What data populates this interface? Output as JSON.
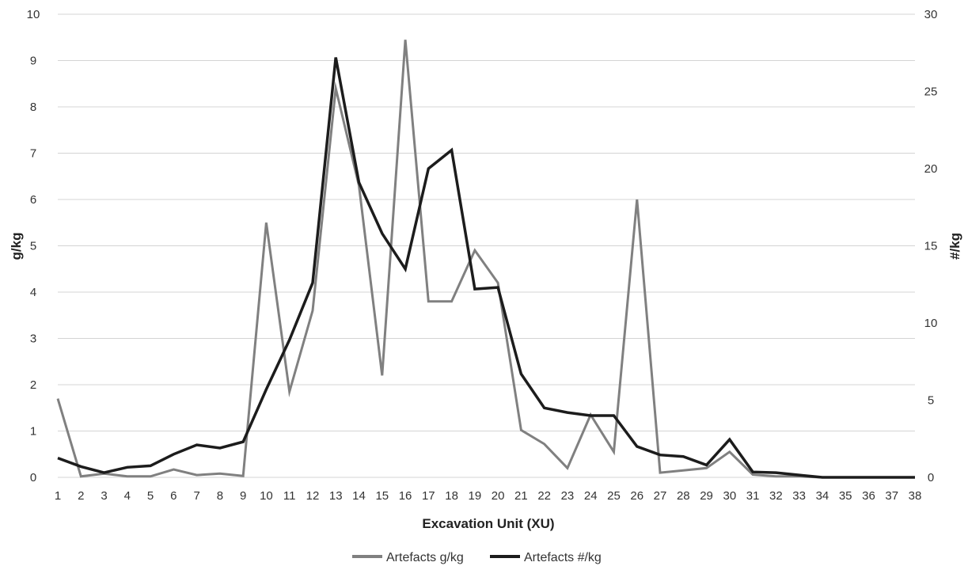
{
  "chart_data": {
    "type": "line",
    "title": "",
    "xlabel": "Excavation Unit (XU)",
    "ylabel": "g/kg",
    "y2label": "#/kg",
    "ylim": [
      0,
      10
    ],
    "y2lim": [
      0,
      30
    ],
    "yticks": [
      0,
      1,
      2,
      3,
      4,
      5,
      6,
      7,
      8,
      9,
      10
    ],
    "y2ticks": [
      0,
      5,
      10,
      15,
      20,
      25,
      30
    ],
    "grid": true,
    "legend_position": "bottom",
    "x": [
      1,
      2,
      3,
      4,
      5,
      6,
      7,
      8,
      9,
      10,
      11,
      12,
      13,
      14,
      15,
      16,
      17,
      18,
      19,
      20,
      21,
      22,
      23,
      24,
      25,
      26,
      27,
      28,
      29,
      30,
      31,
      32,
      33,
      34,
      35,
      36,
      37,
      38
    ],
    "series": [
      {
        "name": "Artefacts g/kg",
        "axis": "left",
        "color": "#808080",
        "values": [
          1.7,
          0.02,
          0.08,
          0.02,
          0.02,
          0.17,
          0.05,
          0.08,
          0.03,
          5.5,
          1.85,
          3.6,
          8.4,
          6.3,
          2.2,
          9.45,
          3.8,
          3.8,
          4.9,
          4.2,
          1.02,
          0.72,
          0.2,
          1.35,
          0.55,
          6.0,
          0.1,
          0.15,
          0.2,
          0.55,
          0.06,
          0.02,
          0.02,
          0.0,
          0.0,
          0.0,
          0.0,
          0.0
        ]
      },
      {
        "name": "Artefacts #/kg",
        "axis": "right",
        "color": "#1c1c1c",
        "values": [
          1.25,
          0.7,
          0.3,
          0.65,
          0.75,
          1.5,
          2.1,
          1.9,
          2.3,
          5.7,
          8.9,
          12.6,
          27.2,
          19.1,
          15.8,
          13.5,
          20.0,
          21.2,
          12.2,
          12.3,
          6.7,
          4.5,
          4.2,
          4.0,
          4.0,
          2.0,
          1.45,
          1.35,
          0.8,
          2.45,
          0.35,
          0.3,
          0.15,
          0.0,
          0.0,
          0.0,
          0.0,
          0.0
        ]
      }
    ]
  }
}
